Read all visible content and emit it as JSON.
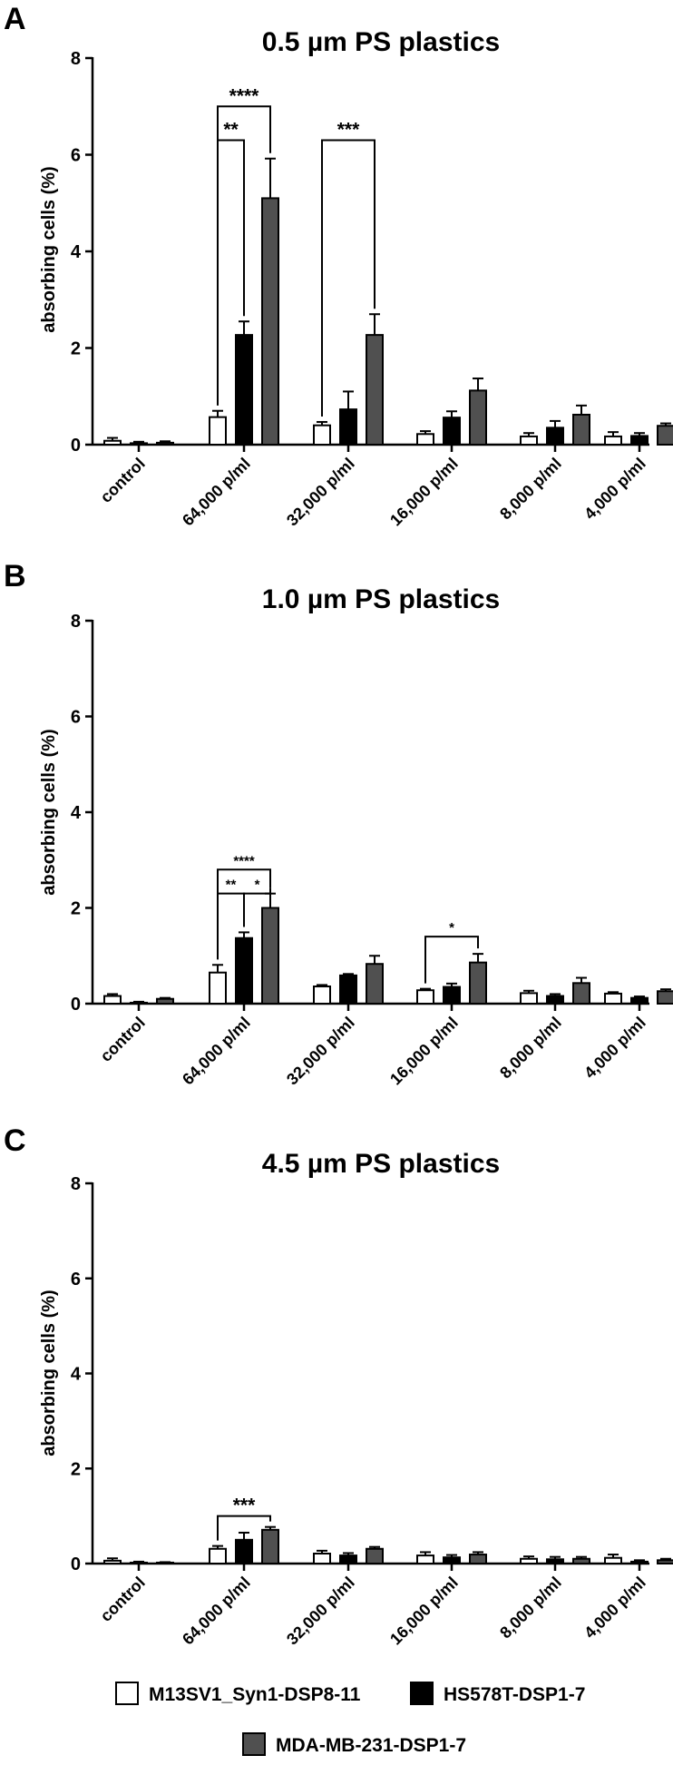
{
  "legend": {
    "series": [
      {
        "name": "M13SV1_Syn1-DSP8-11",
        "color": "#ffffff"
      },
      {
        "name": "HS578T-DSP1-7",
        "color": "#000000"
      },
      {
        "name": "MDA-MB-231-DSP1-7",
        "color": "#505050"
      }
    ]
  },
  "chart_data": [
    {
      "type": "bar",
      "panel": "A",
      "title": "0.5 µm PS plastics",
      "ylabel": "absorbing cells (%)",
      "ylim": [
        0,
        8
      ],
      "yticks": [
        0,
        2,
        4,
        6,
        8
      ],
      "categories": [
        "control",
        "64,000 p/ml",
        "32,000 p/ml",
        "16,000 p/ml",
        "8,000 p/ml",
        "4,000 p/ml"
      ],
      "series": [
        {
          "name": "M13SV1_Syn1-DSP8-11",
          "values": [
            0.08,
            0.57,
            0.4,
            0.22,
            0.17,
            0.17
          ],
          "errors": [
            0.06,
            0.13,
            0.07,
            0.06,
            0.07,
            0.09
          ]
        },
        {
          "name": "HS578T-DSP1-7",
          "values": [
            0.03,
            2.27,
            0.73,
            0.56,
            0.35,
            0.18
          ],
          "errors": [
            0.03,
            0.28,
            0.37,
            0.13,
            0.14,
            0.06
          ]
        },
        {
          "name": "MDA-MB-231-DSP1-7",
          "values": [
            0.04,
            5.1,
            2.27,
            1.12,
            0.62,
            0.39
          ],
          "errors": [
            0.03,
            0.82,
            0.43,
            0.25,
            0.19,
            0.05
          ]
        }
      ],
      "annotations": [
        {
          "label": "****",
          "cat": 1,
          "from": 0,
          "to": 2,
          "level": 7.0
        },
        {
          "label": "**",
          "cat": 1,
          "from": 0,
          "to": 1,
          "level": 6.3
        },
        {
          "label": "***",
          "cat": 2,
          "from": 0,
          "to": 2,
          "level": 6.3
        }
      ]
    },
    {
      "type": "bar",
      "panel": "B",
      "title": "1.0 µm PS plastics",
      "ylabel": "absorbing cells (%)",
      "ylim": [
        0,
        8
      ],
      "yticks": [
        0,
        2,
        4,
        6,
        8
      ],
      "categories": [
        "control",
        "64,000 p/ml",
        "32,000 p/ml",
        "16,000 p/ml",
        "8,000 p/ml",
        "4,000 p/ml"
      ],
      "series": [
        {
          "name": "M13SV1_Syn1-DSP8-11",
          "values": [
            0.16,
            0.65,
            0.36,
            0.28,
            0.22,
            0.21
          ],
          "errors": [
            0.04,
            0.16,
            0.03,
            0.03,
            0.05,
            0.03
          ]
        },
        {
          "name": "HS578T-DSP1-7",
          "values": [
            0.02,
            1.37,
            0.59,
            0.35,
            0.16,
            0.12
          ],
          "errors": [
            0.02,
            0.12,
            0.03,
            0.07,
            0.04,
            0.03
          ]
        },
        {
          "name": "MDA-MB-231-DSP1-7",
          "values": [
            0.1,
            2.0,
            0.83,
            0.86,
            0.43,
            0.26
          ],
          "errors": [
            0.02,
            0.3,
            0.17,
            0.18,
            0.11,
            0.04
          ]
        }
      ],
      "annotations": [
        {
          "label": "****",
          "cat": 1,
          "from": 0,
          "to": 2,
          "level": 2.8
        },
        {
          "label": "**",
          "cat": 1,
          "from": 0,
          "to": 1,
          "level": 2.3
        },
        {
          "label": "*",
          "cat": 1,
          "from": 1,
          "to": 2,
          "level": 2.3
        },
        {
          "label": "*",
          "cat": 3,
          "from": 0,
          "to": 2,
          "level": 1.4
        }
      ]
    },
    {
      "type": "bar",
      "panel": "C",
      "title": "4.5 µm PS plastics",
      "ylabel": "absorbing cells (%)",
      "ylim": [
        0,
        8
      ],
      "yticks": [
        0,
        2,
        4,
        6,
        8
      ],
      "categories": [
        "control",
        "64,000 p/ml",
        "32,000 p/ml",
        "16,000 p/ml",
        "8,000 p/ml",
        "4,000 p/ml"
      ],
      "series": [
        {
          "name": "M13SV1_Syn1-DSP8-11",
          "values": [
            0.06,
            0.31,
            0.21,
            0.17,
            0.1,
            0.12
          ],
          "errors": [
            0.05,
            0.06,
            0.06,
            0.07,
            0.05,
            0.07
          ]
        },
        {
          "name": "HS578T-DSP1-7",
          "values": [
            0.02,
            0.5,
            0.17,
            0.13,
            0.09,
            0.04
          ],
          "errors": [
            0.02,
            0.15,
            0.05,
            0.05,
            0.05,
            0.03
          ]
        },
        {
          "name": "MDA-MB-231-DSP1-7",
          "values": [
            0.02,
            0.71,
            0.31,
            0.19,
            0.1,
            0.07
          ],
          "errors": [
            0.01,
            0.06,
            0.04,
            0.05,
            0.04,
            0.03
          ]
        }
      ],
      "annotations": [
        {
          "label": "***",
          "cat": 1,
          "from": 0,
          "to": 2,
          "level": 1.0
        }
      ]
    }
  ]
}
